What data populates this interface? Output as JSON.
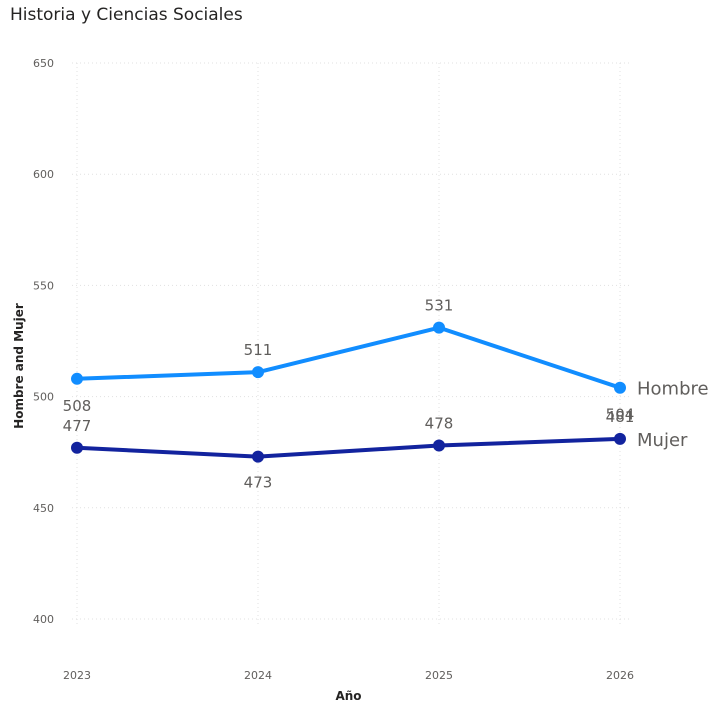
{
  "chart_data": {
    "type": "line",
    "title": "Historia y Ciencias Sociales",
    "xlabel": "Año",
    "ylabel": "Hombre and Mujer",
    "categories": [
      "2023",
      "2024",
      "2025",
      "2026"
    ],
    "ylim": [
      400,
      650
    ],
    "yticks": [
      400,
      450,
      500,
      550,
      600,
      650
    ],
    "grid": true,
    "series": [
      {
        "name": "Hombre",
        "values": [
          508,
          511,
          531,
          504
        ],
        "color": "#118dff"
      },
      {
        "name": "Mujer",
        "values": [
          477,
          473,
          478,
          481
        ],
        "color": "#12239e"
      }
    ]
  }
}
